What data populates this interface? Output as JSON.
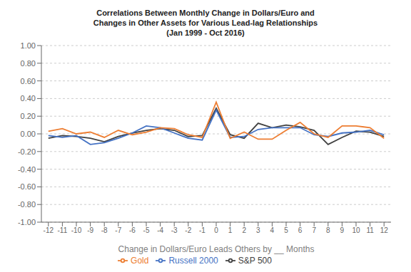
{
  "chart_data": {
    "type": "line",
    "title": "Correlations Between Monthly Change in Dollars/Euro and\nChanges in Other Assets for Various Lead-lag Relationships\n(Jan 1999 - Oct 2016)",
    "xlabel": "Change in Dollars/Euro Leads Others by __ Months",
    "x": [
      -12,
      -11,
      -10,
      -9,
      -8,
      -7,
      -6,
      -5,
      -4,
      -3,
      -2,
      -1,
      0,
      1,
      2,
      3,
      4,
      5,
      6,
      7,
      8,
      9,
      10,
      11,
      12
    ],
    "series": [
      {
        "name": "S&P 500",
        "color": "#404040",
        "values": [
          -0.05,
          -0.02,
          -0.03,
          -0.05,
          -0.09,
          -0.03,
          0.01,
          0.04,
          0.06,
          0.04,
          -0.03,
          -0.02,
          0.29,
          -0.01,
          -0.05,
          0.12,
          0.07,
          0.1,
          0.08,
          0.04,
          -0.12,
          -0.04,
          0.03,
          0.02,
          -0.03
        ]
      },
      {
        "name": "Russell 2000",
        "color": "#4472c4",
        "values": [
          -0.02,
          -0.04,
          -0.02,
          -0.12,
          -0.1,
          -0.05,
          0.01,
          0.09,
          0.07,
          0.01,
          -0.05,
          -0.07,
          0.27,
          -0.04,
          -0.03,
          0.05,
          0.07,
          0.07,
          0.07,
          -0.01,
          -0.03,
          0.01,
          0.02,
          0.04,
          -0.01
        ]
      },
      {
        "name": "Gold",
        "color": "#ed7d31",
        "values": [
          0.03,
          0.06,
          0.0,
          0.02,
          -0.04,
          0.04,
          -0.01,
          0.02,
          0.07,
          0.06,
          -0.01,
          -0.04,
          0.36,
          -0.05,
          0.02,
          -0.06,
          -0.06,
          0.04,
          0.13,
          0.0,
          -0.04,
          0.09,
          0.09,
          0.07,
          -0.05
        ]
      }
    ],
    "xlim": [
      -12.5,
      12.5
    ],
    "xticks": [
      -12,
      -11,
      -10,
      -9,
      -8,
      -7,
      -6,
      -5,
      -4,
      -3,
      -2,
      -1,
      0,
      1,
      2,
      3,
      4,
      5,
      6,
      7,
      8,
      9,
      10,
      11,
      12
    ],
    "ylim": [
      -1.0,
      1.0
    ],
    "yticks": [
      {
        "value": -1.0,
        "label": "-1.00"
      },
      {
        "value": -0.8,
        "label": "-0.80"
      },
      {
        "value": -0.6,
        "label": "-0.60"
      },
      {
        "value": -0.4,
        "label": "-0.40"
      },
      {
        "value": -0.2,
        "label": "-0.20"
      },
      {
        "value": 0.0,
        "label": "0.00"
      },
      {
        "value": 0.2,
        "label": "0.20"
      },
      {
        "value": 0.4,
        "label": "0.40"
      },
      {
        "value": 0.6,
        "label": "0.60"
      },
      {
        "value": 0.8,
        "label": "0.80"
      },
      {
        "value": 1.0,
        "label": "1.00"
      }
    ],
    "grid": true,
    "legend": "bottom"
  }
}
